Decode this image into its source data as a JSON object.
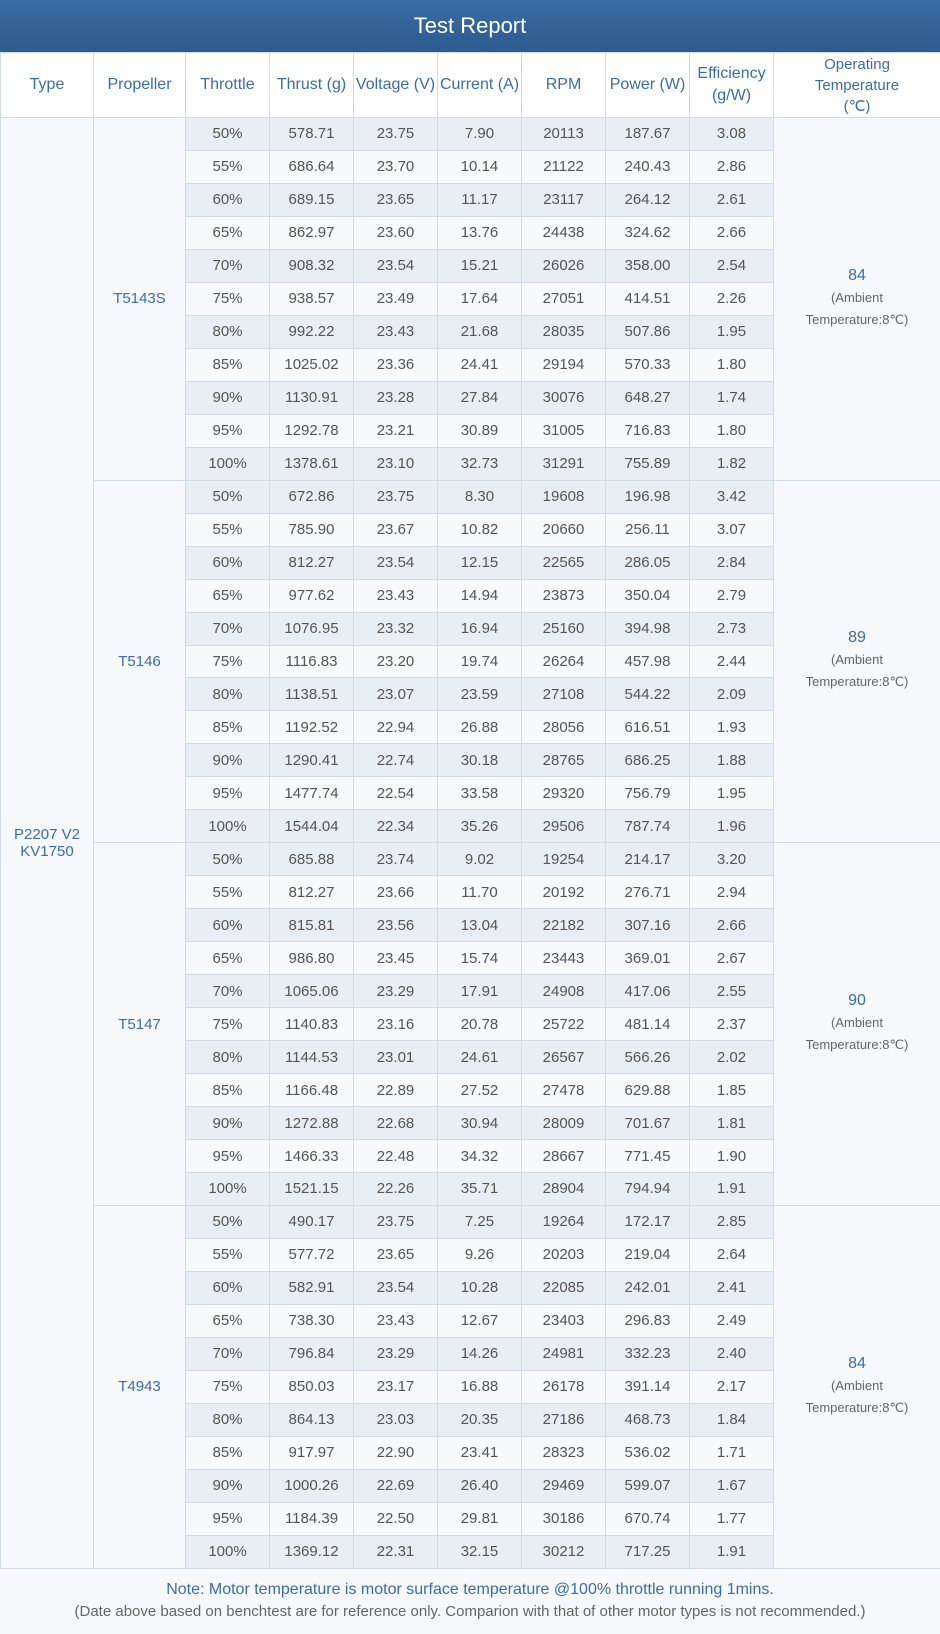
{
  "header": {
    "title": "Test Report"
  },
  "table": {
    "columns": [
      "Type",
      "Propeller",
      "Throttle",
      "Thrust (g)",
      "Voltage (V)",
      "Current (A)",
      "RPM",
      "Power (W)",
      "Efficiency (g/W)",
      "Operating Temperature (℃)"
    ],
    "type": "P2207 V2 KV1750",
    "groups": [
      {
        "propeller": "T5143S",
        "temperature": "84",
        "temperature_note": "(Ambient Temperature:8℃)",
        "rows": [
          [
            "50%",
            "578.71",
            "23.75",
            "7.90",
            "20113",
            "187.67",
            "3.08"
          ],
          [
            "55%",
            "686.64",
            "23.70",
            "10.14",
            "21122",
            "240.43",
            "2.86"
          ],
          [
            "60%",
            "689.15",
            "23.65",
            "11.17",
            "23117",
            "264.12",
            "2.61"
          ],
          [
            "65%",
            "862.97",
            "23.60",
            "13.76",
            "24438",
            "324.62",
            "2.66"
          ],
          [
            "70%",
            "908.32",
            "23.54",
            "15.21",
            "26026",
            "358.00",
            "2.54"
          ],
          [
            "75%",
            "938.57",
            "23.49",
            "17.64",
            "27051",
            "414.51",
            "2.26"
          ],
          [
            "80%",
            "992.22",
            "23.43",
            "21.68",
            "28035",
            "507.86",
            "1.95"
          ],
          [
            "85%",
            "1025.02",
            "23.36",
            "24.41",
            "29194",
            "570.33",
            "1.80"
          ],
          [
            "90%",
            "1130.91",
            "23.28",
            "27.84",
            "30076",
            "648.27",
            "1.74"
          ],
          [
            "95%",
            "1292.78",
            "23.21",
            "30.89",
            "31005",
            "716.83",
            "1.80"
          ],
          [
            "100%",
            "1378.61",
            "23.10",
            "32.73",
            "31291",
            "755.89",
            "1.82"
          ]
        ]
      },
      {
        "propeller": "T5146",
        "temperature": "89",
        "temperature_note": "(Ambient Temperature:8℃)",
        "rows": [
          [
            "50%",
            "672.86",
            "23.75",
            "8.30",
            "19608",
            "196.98",
            "3.42"
          ],
          [
            "55%",
            "785.90",
            "23.67",
            "10.82",
            "20660",
            "256.11",
            "3.07"
          ],
          [
            "60%",
            "812.27",
            "23.54",
            "12.15",
            "22565",
            "286.05",
            "2.84"
          ],
          [
            "65%",
            "977.62",
            "23.43",
            "14.94",
            "23873",
            "350.04",
            "2.79"
          ],
          [
            "70%",
            "1076.95",
            "23.32",
            "16.94",
            "25160",
            "394.98",
            "2.73"
          ],
          [
            "75%",
            "1116.83",
            "23.20",
            "19.74",
            "26264",
            "457.98",
            "2.44"
          ],
          [
            "80%",
            "1138.51",
            "23.07",
            "23.59",
            "27108",
            "544.22",
            "2.09"
          ],
          [
            "85%",
            "1192.52",
            "22.94",
            "26.88",
            "28056",
            "616.51",
            "1.93"
          ],
          [
            "90%",
            "1290.41",
            "22.74",
            "30.18",
            "28765",
            "686.25",
            "1.88"
          ],
          [
            "95%",
            "1477.74",
            "22.54",
            "33.58",
            "29320",
            "756.79",
            "1.95"
          ],
          [
            "100%",
            "1544.04",
            "22.34",
            "35.26",
            "29506",
            "787.74",
            "1.96"
          ]
        ]
      },
      {
        "propeller": "T5147",
        "temperature": "90",
        "temperature_note": "(Ambient Temperature:8℃)",
        "rows": [
          [
            "50%",
            "685.88",
            "23.74",
            "9.02",
            "19254",
            "214.17",
            "3.20"
          ],
          [
            "55%",
            "812.27",
            "23.66",
            "11.70",
            "20192",
            "276.71",
            "2.94"
          ],
          [
            "60%",
            "815.81",
            "23.56",
            "13.04",
            "22182",
            "307.16",
            "2.66"
          ],
          [
            "65%",
            "986.80",
            "23.45",
            "15.74",
            "23443",
            "369.01",
            "2.67"
          ],
          [
            "70%",
            "1065.06",
            "23.29",
            "17.91",
            "24908",
            "417.06",
            "2.55"
          ],
          [
            "75%",
            "1140.83",
            "23.16",
            "20.78",
            "25722",
            "481.14",
            "2.37"
          ],
          [
            "80%",
            "1144.53",
            "23.01",
            "24.61",
            "26567",
            "566.26",
            "2.02"
          ],
          [
            "85%",
            "1166.48",
            "22.89",
            "27.52",
            "27478",
            "629.88",
            "1.85"
          ],
          [
            "90%",
            "1272.88",
            "22.68",
            "30.94",
            "28009",
            "701.67",
            "1.81"
          ],
          [
            "95%",
            "1466.33",
            "22.48",
            "34.32",
            "28667",
            "771.45",
            "1.90"
          ],
          [
            "100%",
            "1521.15",
            "22.26",
            "35.71",
            "28904",
            "794.94",
            "1.91"
          ]
        ]
      },
      {
        "propeller": "T4943",
        "temperature": "84",
        "temperature_note": "(Ambient Temperature:8℃)",
        "rows": [
          [
            "50%",
            "490.17",
            "23.75",
            "7.25",
            "19264",
            "172.17",
            "2.85"
          ],
          [
            "55%",
            "577.72",
            "23.65",
            "9.26",
            "20203",
            "219.04",
            "2.64"
          ],
          [
            "60%",
            "582.91",
            "23.54",
            "10.28",
            "22085",
            "242.01",
            "2.41"
          ],
          [
            "65%",
            "738.30",
            "23.43",
            "12.67",
            "23403",
            "296.83",
            "2.49"
          ],
          [
            "70%",
            "796.84",
            "23.29",
            "14.26",
            "24981",
            "332.23",
            "2.40"
          ],
          [
            "75%",
            "850.03",
            "23.17",
            "16.88",
            "26178",
            "391.14",
            "2.17"
          ],
          [
            "80%",
            "864.13",
            "23.03",
            "20.35",
            "27186",
            "468.73",
            "1.84"
          ],
          [
            "85%",
            "917.97",
            "22.90",
            "23.41",
            "28323",
            "536.02",
            "1.71"
          ],
          [
            "90%",
            "1000.26",
            "22.69",
            "26.40",
            "29469",
            "599.07",
            "1.67"
          ],
          [
            "95%",
            "1184.39",
            "22.50",
            "29.81",
            "30186",
            "670.74",
            "1.77"
          ],
          [
            "100%",
            "1369.12",
            "22.31",
            "32.15",
            "30212",
            "717.25",
            "1.91"
          ]
        ]
      }
    ]
  },
  "footer": {
    "note": "Note: Motor temperature is motor surface temperature @100% throttle running 1mins.",
    "disclaimer": "(Date above based on benchtest are for reference only. Comparion with that of other motor types is not recommended.)"
  }
}
